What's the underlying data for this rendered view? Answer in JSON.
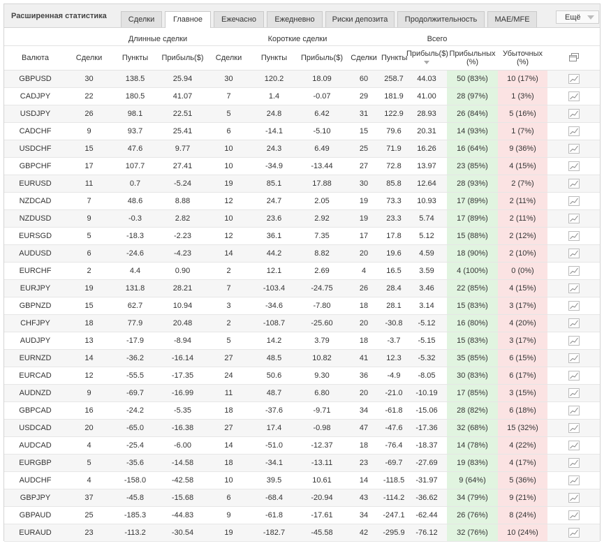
{
  "header": {
    "title": "Расширенная статистика",
    "tabs": [
      "Сделки",
      "Главное",
      "Ежечасно",
      "Ежедневно",
      "Риски депозита",
      "Продолжительность",
      "MAE/MFE"
    ],
    "active_tab": "Главное",
    "more_label": "Ещё"
  },
  "groups": {
    "long": "Длинные сделки",
    "short": "Короткие сделки",
    "total": "Всего"
  },
  "columns": {
    "currency": "Валюта",
    "deals": "Сделки",
    "points": "Пункты",
    "profit": "Прибыль($)",
    "winning": "Прибыльных (%)",
    "losing": "Убыточных (%)"
  },
  "colors": {
    "positive": "#1e8a1e",
    "negative": "#d62020",
    "winning_bg": "#e1f4e0",
    "losing_bg": "#fbe3e3"
  },
  "rows": [
    [
      "GBPUSD",
      "30",
      "138.5",
      "25.94",
      "30",
      "120.2",
      "18.09",
      "60",
      "258.7",
      "44.03",
      "50 (83%)",
      "10 (17%)"
    ],
    [
      "CADJPY",
      "22",
      "180.5",
      "41.07",
      "7",
      "1.4",
      "-0.07",
      "29",
      "181.9",
      "41.00",
      "28 (97%)",
      "1 (3%)"
    ],
    [
      "USDJPY",
      "26",
      "98.1",
      "22.51",
      "5",
      "24.8",
      "6.42",
      "31",
      "122.9",
      "28.93",
      "26 (84%)",
      "5 (16%)"
    ],
    [
      "CADCHF",
      "9",
      "93.7",
      "25.41",
      "6",
      "-14.1",
      "-5.10",
      "15",
      "79.6",
      "20.31",
      "14 (93%)",
      "1 (7%)"
    ],
    [
      "USDCHF",
      "15",
      "47.6",
      "9.77",
      "10",
      "24.3",
      "6.49",
      "25",
      "71.9",
      "16.26",
      "16 (64%)",
      "9 (36%)"
    ],
    [
      "GBPCHF",
      "17",
      "107.7",
      "27.41",
      "10",
      "-34.9",
      "-13.44",
      "27",
      "72.8",
      "13.97",
      "23 (85%)",
      "4 (15%)"
    ],
    [
      "EURUSD",
      "11",
      "0.7",
      "-5.24",
      "19",
      "85.1",
      "17.88",
      "30",
      "85.8",
      "12.64",
      "28 (93%)",
      "2 (7%)"
    ],
    [
      "NZDCAD",
      "7",
      "48.6",
      "8.88",
      "12",
      "24.7",
      "2.05",
      "19",
      "73.3",
      "10.93",
      "17 (89%)",
      "2 (11%)"
    ],
    [
      "NZDUSD",
      "9",
      "-0.3",
      "2.82",
      "10",
      "23.6",
      "2.92",
      "19",
      "23.3",
      "5.74",
      "17 (89%)",
      "2 (11%)"
    ],
    [
      "EURSGD",
      "5",
      "-18.3",
      "-2.23",
      "12",
      "36.1",
      "7.35",
      "17",
      "17.8",
      "5.12",
      "15 (88%)",
      "2 (12%)"
    ],
    [
      "AUDUSD",
      "6",
      "-24.6",
      "-4.23",
      "14",
      "44.2",
      "8.82",
      "20",
      "19.6",
      "4.59",
      "18 (90%)",
      "2 (10%)"
    ],
    [
      "EURCHF",
      "2",
      "4.4",
      "0.90",
      "2",
      "12.1",
      "2.69",
      "4",
      "16.5",
      "3.59",
      "4 (100%)",
      "0 (0%)"
    ],
    [
      "EURJPY",
      "19",
      "131.8",
      "28.21",
      "7",
      "-103.4",
      "-24.75",
      "26",
      "28.4",
      "3.46",
      "22 (85%)",
      "4 (15%)"
    ],
    [
      "GBPNZD",
      "15",
      "62.7",
      "10.94",
      "3",
      "-34.6",
      "-7.80",
      "18",
      "28.1",
      "3.14",
      "15 (83%)",
      "3 (17%)"
    ],
    [
      "CHFJPY",
      "18",
      "77.9",
      "20.48",
      "2",
      "-108.7",
      "-25.60",
      "20",
      "-30.8",
      "-5.12",
      "16 (80%)",
      "4 (20%)"
    ],
    [
      "AUDJPY",
      "13",
      "-17.9",
      "-8.94",
      "5",
      "14.2",
      "3.79",
      "18",
      "-3.7",
      "-5.15",
      "15 (83%)",
      "3 (17%)"
    ],
    [
      "EURNZD",
      "14",
      "-36.2",
      "-16.14",
      "27",
      "48.5",
      "10.82",
      "41",
      "12.3",
      "-5.32",
      "35 (85%)",
      "6 (15%)"
    ],
    [
      "EURCAD",
      "12",
      "-55.5",
      "-17.35",
      "24",
      "50.6",
      "9.30",
      "36",
      "-4.9",
      "-8.05",
      "30 (83%)",
      "6 (17%)"
    ],
    [
      "AUDNZD",
      "9",
      "-69.7",
      "-16.99",
      "11",
      "48.7",
      "6.80",
      "20",
      "-21.0",
      "-10.19",
      "17 (85%)",
      "3 (15%)"
    ],
    [
      "GBPCAD",
      "16",
      "-24.2",
      "-5.35",
      "18",
      "-37.6",
      "-9.71",
      "34",
      "-61.8",
      "-15.06",
      "28 (82%)",
      "6 (18%)"
    ],
    [
      "USDCAD",
      "20",
      "-65.0",
      "-16.38",
      "27",
      "17.4",
      "-0.98",
      "47",
      "-47.6",
      "-17.36",
      "32 (68%)",
      "15 (32%)"
    ],
    [
      "AUDCAD",
      "4",
      "-25.4",
      "-6.00",
      "14",
      "-51.0",
      "-12.37",
      "18",
      "-76.4",
      "-18.37",
      "14 (78%)",
      "4 (22%)"
    ],
    [
      "EURGBP",
      "5",
      "-35.6",
      "-14.58",
      "18",
      "-34.1",
      "-13.11",
      "23",
      "-69.7",
      "-27.69",
      "19 (83%)",
      "4 (17%)"
    ],
    [
      "AUDCHF",
      "4",
      "-158.0",
      "-42.58",
      "10",
      "39.5",
      "10.61",
      "14",
      "-118.5",
      "-31.97",
      "9 (64%)",
      "5 (36%)"
    ],
    [
      "GBPJPY",
      "37",
      "-45.8",
      "-15.68",
      "6",
      "-68.4",
      "-20.94",
      "43",
      "-114.2",
      "-36.62",
      "34 (79%)",
      "9 (21%)"
    ],
    [
      "GBPAUD",
      "25",
      "-185.3",
      "-44.83",
      "9",
      "-61.8",
      "-17.61",
      "34",
      "-247.1",
      "-62.44",
      "26 (76%)",
      "8 (24%)"
    ],
    [
      "EURAUD",
      "23",
      "-113.2",
      "-30.54",
      "19",
      "-182.7",
      "-45.58",
      "42",
      "-295.9",
      "-76.12",
      "32 (76%)",
      "10 (24%)"
    ]
  ]
}
